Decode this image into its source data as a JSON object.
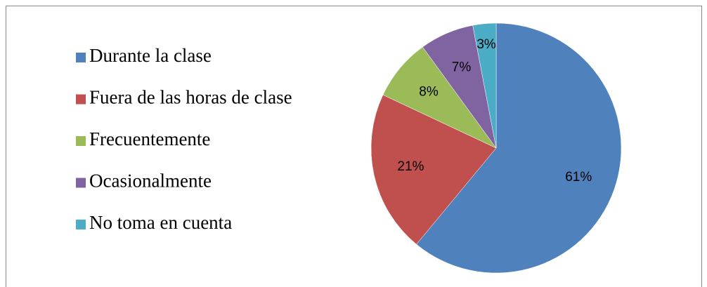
{
  "chart_data": {
    "type": "pie",
    "categories": [
      "Durante la clase",
      "Fuera de las horas de clase",
      "Frecuentemente",
      "Ocasionalmente",
      "No toma en cuenta"
    ],
    "values": [
      61,
      21,
      8,
      7,
      3
    ],
    "value_labels": [
      "61%",
      "21%",
      "8%",
      "7%",
      "3%"
    ],
    "colors": [
      "#4f81bd",
      "#c0504d",
      "#9bbb59",
      "#8064a2",
      "#4bacc6"
    ],
    "legend": "left"
  }
}
